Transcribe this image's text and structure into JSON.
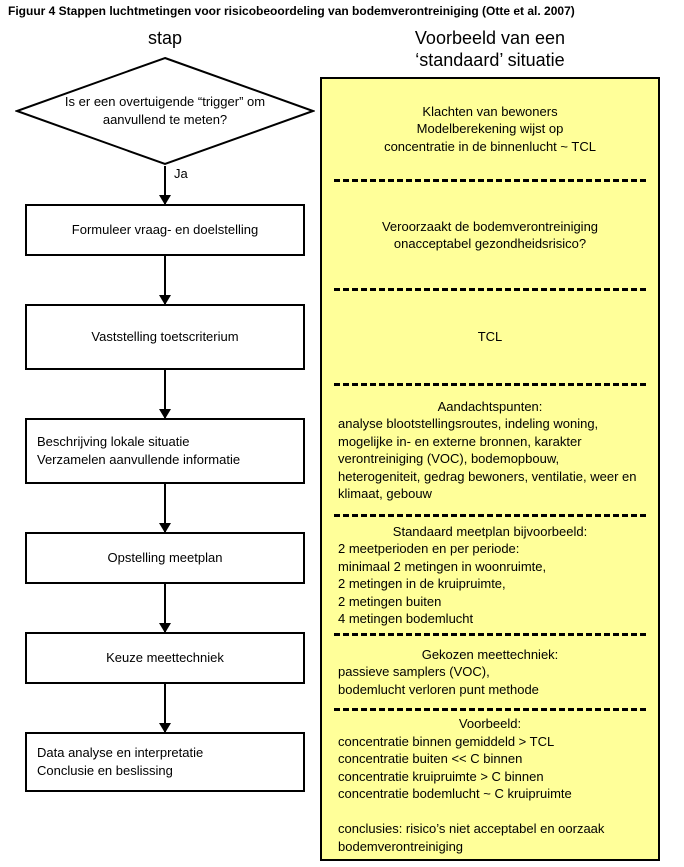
{
  "figure_title": "Figuur 4 Stappen luchtmetingen voor risicobeoordeling van bodemverontreiniging (Otte et al. 2007)",
  "left": {
    "title": "stap",
    "ja_label": "Ja",
    "nodes": [
      {
        "id": "trigger",
        "type": "diamond",
        "height": 110,
        "text": "Is er een overtuigende “trigger” om\naanvullend te meten?"
      },
      {
        "id": "vraag",
        "type": "box",
        "height": 52,
        "text": "Formuleer vraag- en doelstelling"
      },
      {
        "id": "toets",
        "type": "box",
        "height": 66,
        "text": "Vaststelling toetscriterium"
      },
      {
        "id": "lokaal",
        "type": "box",
        "height": 66,
        "align": "left",
        "text": "Beschrijving lokale situatie\nVerzamelen aanvullende informatie"
      },
      {
        "id": "meetplan",
        "type": "box",
        "height": 52,
        "text": "Opstelling meetplan"
      },
      {
        "id": "techniek",
        "type": "box",
        "height": 52,
        "text": "Keuze meettechniek"
      },
      {
        "id": "conclusie",
        "type": "box",
        "height": 60,
        "align": "left",
        "text": "Data analyse en interpretatie\nConclusie en beslissing"
      }
    ],
    "arrow_heights": [
      38,
      48,
      48,
      48,
      48,
      48
    ]
  },
  "right": {
    "title": "Voorbeeld van een\n‘standaard’ situatie",
    "cells": [
      {
        "id": "r1",
        "height": 100,
        "align": "center",
        "text": "Klachten van bewoners\nModelberekening wijst op\nconcentratie in de binnenlucht ~ TCL"
      },
      {
        "id": "r2",
        "height": 106,
        "align": "center",
        "text": "Veroorzaakt de bodemverontreiniging\nonacceptabel gezondheidsrisico?"
      },
      {
        "id": "r3",
        "height": 92,
        "align": "center",
        "text": "TCL"
      },
      {
        "id": "r4",
        "height": 128,
        "align": "left",
        "heading": "Aandachtspunten:",
        "text": "analyse blootstellingsroutes, indeling woning, mogelijke in- en externe bronnen, karakter verontreiniging (VOC), bodemopbouw, heterogeniteit, gedrag bewoners, ventilatie, weer en klimaat, gebouw"
      },
      {
        "id": "r5",
        "height": 116,
        "align": "left",
        "heading": "Standaard meetplan bijvoorbeeld:",
        "text": "2 meetperioden en per periode:\nminimaal 2 metingen in woonruimte,\n2 metingen in de kruipruimte,\n2 metingen buiten\n4 metingen bodemlucht"
      },
      {
        "id": "r6",
        "height": 72,
        "align": "left",
        "heading": "Gekozen meettechniek:",
        "text": "passieve samplers (VOC),\nbodemlucht verloren punt methode"
      },
      {
        "id": "r7",
        "height": 148,
        "align": "left",
        "heading": "Voorbeeld:",
        "text": "concentratie binnen gemiddeld > TCL\nconcentratie buiten << C binnen\nconcentratie kruipruimte > C binnen\nconcentratie bodemlucht ~ C kruipruimte\n\nconclusies: risico’s niet acceptabel en oorzaak bodemverontreiniging"
      }
    ]
  },
  "colors": {
    "yellow_bg": "#ffff99",
    "border": "#000000",
    "page_bg": "#ffffff"
  }
}
